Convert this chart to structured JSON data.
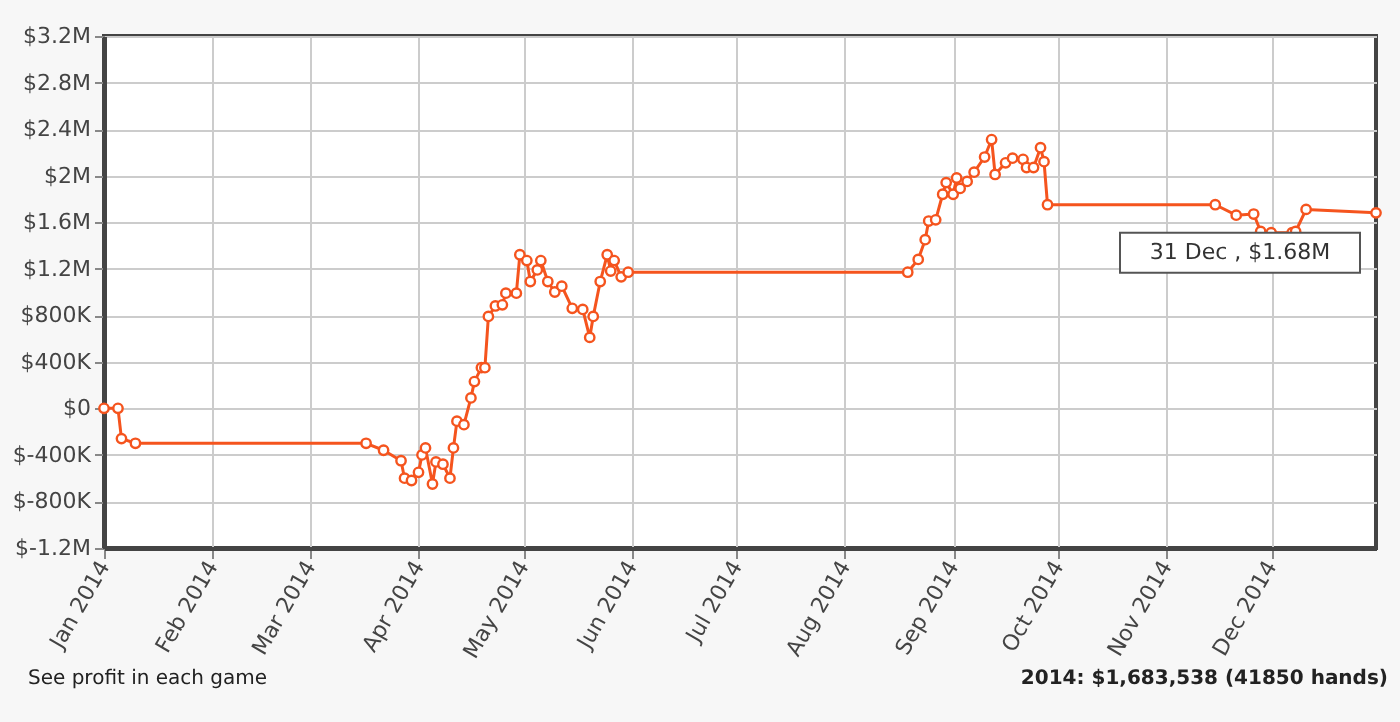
{
  "chart_data": {
    "type": "line",
    "x": [
      "2014-01-01",
      "2014-01-05",
      "2014-01-06",
      "2014-01-10",
      "2014-03-17",
      "2014-03-22",
      "2014-03-27",
      "2014-03-28",
      "2014-03-30",
      "2014-04-01",
      "2014-04-02",
      "2014-04-03",
      "2014-04-05",
      "2014-04-06",
      "2014-04-08",
      "2014-04-10",
      "2014-04-11",
      "2014-04-12",
      "2014-04-14",
      "2014-04-16",
      "2014-04-17",
      "2014-04-19",
      "2014-04-20",
      "2014-04-21",
      "2014-04-23",
      "2014-04-25",
      "2014-04-26",
      "2014-04-29",
      "2014-04-30",
      "2014-05-02",
      "2014-05-03",
      "2014-05-05",
      "2014-05-06",
      "2014-05-08",
      "2014-05-10",
      "2014-05-12",
      "2014-05-15",
      "2014-05-18",
      "2014-05-20",
      "2014-05-21",
      "2014-05-23",
      "2014-05-25",
      "2014-05-26",
      "2014-05-27",
      "2014-05-29",
      "2014-05-31",
      "2014-08-19",
      "2014-08-22",
      "2014-08-24",
      "2014-08-25",
      "2014-08-27",
      "2014-08-29",
      "2014-08-30",
      "2014-09-01",
      "2014-09-02",
      "2014-09-03",
      "2014-09-05",
      "2014-09-07",
      "2014-09-10",
      "2014-09-12",
      "2014-09-13",
      "2014-09-16",
      "2014-09-18",
      "2014-09-21",
      "2014-09-22",
      "2014-09-24",
      "2014-09-26",
      "2014-09-27",
      "2014-09-28",
      "2014-11-15",
      "2014-11-21",
      "2014-11-26",
      "2014-11-28",
      "2014-12-01",
      "2014-12-07",
      "2014-12-08",
      "2014-12-11",
      "2014-12-31"
    ],
    "series": [
      {
        "color": "#f5541e",
        "values": [
          0,
          0,
          -260000,
          -300000,
          -300000,
          -360000,
          -450000,
          -600000,
          -620000,
          -550000,
          -400000,
          -340000,
          -650000,
          -460000,
          -480000,
          -600000,
          -340000,
          -110000,
          -140000,
          90000,
          230000,
          350000,
          350000,
          790000,
          880000,
          890000,
          990000,
          990000,
          1320000,
          1270000,
          1090000,
          1190000,
          1270000,
          1090000,
          1000000,
          1050000,
          860000,
          850000,
          610000,
          790000,
          1090000,
          1320000,
          1180000,
          1270000,
          1130000,
          1170000,
          1170000,
          1280000,
          1450000,
          1610000,
          1620000,
          1840000,
          1940000,
          1840000,
          1980000,
          1890000,
          1950000,
          2030000,
          2160000,
          2310000,
          2010000,
          2110000,
          2150000,
          2140000,
          2070000,
          2070000,
          2240000,
          2120000,
          1750000,
          1750000,
          1660000,
          1670000,
          1520000,
          1510000,
          1510000,
          1520000,
          1710000,
          1680000
        ]
      }
    ],
    "xlim": [
      "2014-01-01",
      "2014-12-31"
    ],
    "xticks": [
      {
        "value": "2014-01-01",
        "label": "Jan 2014"
      },
      {
        "value": "2014-02-01",
        "label": "Feb 2014"
      },
      {
        "value": "2014-03-01",
        "label": "Mar 2014"
      },
      {
        "value": "2014-04-01",
        "label": "Apr 2014"
      },
      {
        "value": "2014-05-01",
        "label": "May 2014"
      },
      {
        "value": "2014-06-01",
        "label": "Jun 2014"
      },
      {
        "value": "2014-07-01",
        "label": "Jul 2014"
      },
      {
        "value": "2014-08-01",
        "label": "Aug 2014"
      },
      {
        "value": "2014-09-01",
        "label": "Sep 2014"
      },
      {
        "value": "2014-10-01",
        "label": "Oct 2014"
      },
      {
        "value": "2014-11-01",
        "label": "Nov 2014"
      },
      {
        "value": "2014-12-01",
        "label": "Dec 2014"
      }
    ],
    "ylim": [
      -1200000,
      3200000
    ],
    "yticks": [
      {
        "value": -1200000,
        "label": "$-1.2M"
      },
      {
        "value": -800000,
        "label": "$-800K"
      },
      {
        "value": -400000,
        "label": "$-400K"
      },
      {
        "value": 0,
        "label": "$0"
      },
      {
        "value": 400000,
        "label": "$400K"
      },
      {
        "value": 800000,
        "label": "$800K"
      },
      {
        "value": 1200000,
        "label": "$1.2M"
      },
      {
        "value": 1600000,
        "label": "$1.6M"
      },
      {
        "value": 2000000,
        "label": "$2M"
      },
      {
        "value": 2400000,
        "label": "$2.4M"
      },
      {
        "value": 2800000,
        "label": "$2.8M"
      },
      {
        "value": 3200000,
        "label": "$3.2M"
      }
    ],
    "grid": true,
    "marker": "circle",
    "line_style": "solid",
    "annotations": [
      {
        "text": "31 Dec , $1.68M",
        "x": "2014-12-31",
        "y": 1680000
      },
      "See profit in each game",
      "2014: $1,683,538 (41850 hands)"
    ]
  }
}
